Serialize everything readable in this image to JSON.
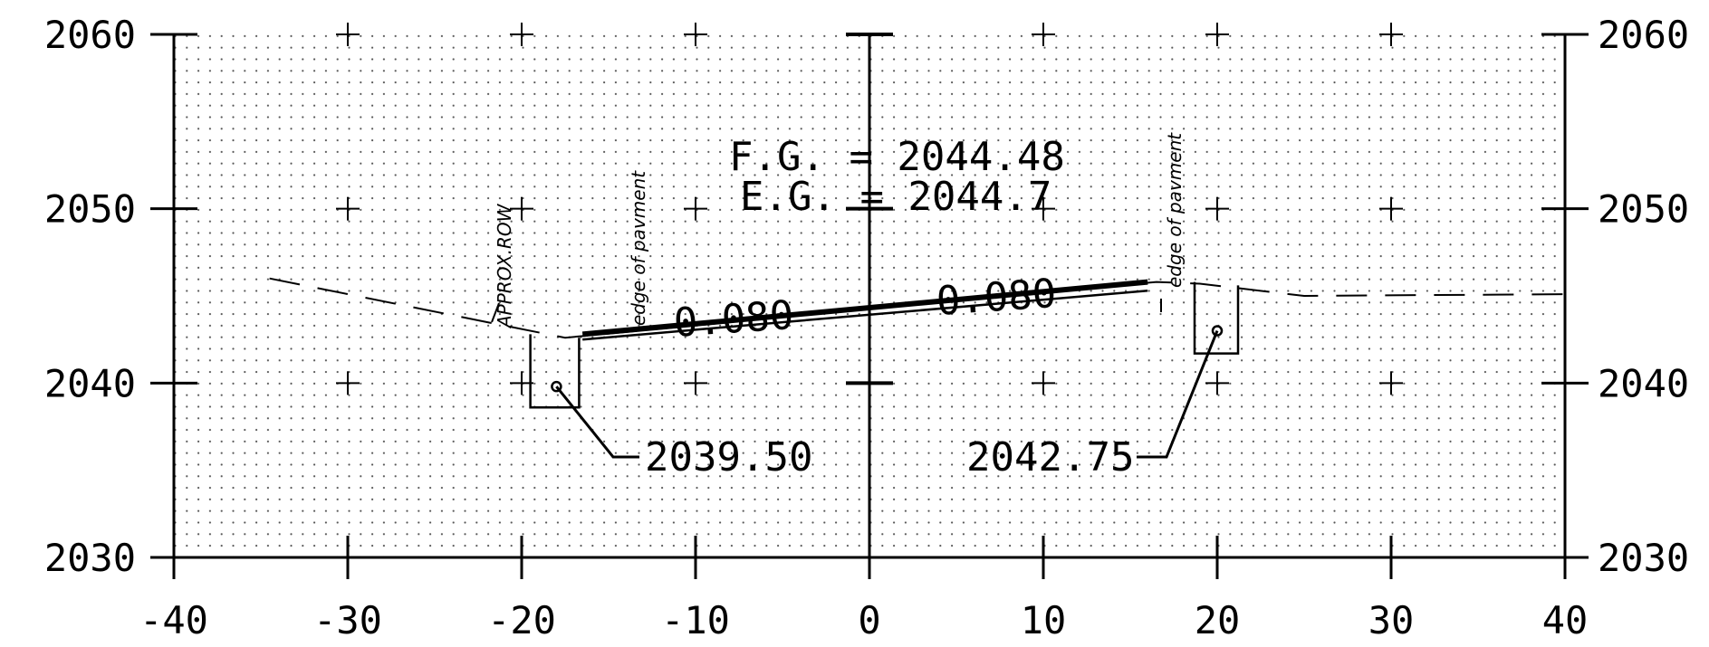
{
  "chart_data": {
    "type": "cross-section",
    "xlim": [
      -40,
      40
    ],
    "ylim": [
      2030,
      2060
    ],
    "x_ticks": [
      -40,
      -30,
      -20,
      -10,
      0,
      10,
      20,
      30,
      40
    ],
    "y_ticks": [
      2030,
      2040,
      2050,
      2060
    ],
    "x_tick_labels": [
      "-40",
      "-30",
      "-20",
      "-10",
      "0",
      "10",
      "20",
      "30",
      "40"
    ],
    "y_tick_labels": [
      "2030",
      "2040",
      "2050",
      "2060"
    ],
    "grid": "dotted",
    "annotations": {
      "fg": "F.G. = 2044.48",
      "eg": "E.G. = 2044.7",
      "slope_left": "0.080",
      "slope_right": "0.080",
      "elev_left": "2039.50",
      "elev_right": "2042.75",
      "row_label": "APPROX.ROW",
      "pav_left": "edge of pavment",
      "pav_right": "edge of pavment"
    },
    "existing_ground": [
      [
        -34.5,
        2046.0
      ],
      [
        -21,
        2043.3
      ],
      [
        -17.5,
        2042.6
      ],
      [
        16.5,
        2045.8
      ],
      [
        19,
        2045.7
      ],
      [
        25,
        2045.0
      ],
      [
        40,
        2045.1
      ]
    ],
    "finished_grade_top": [
      [
        -16.5,
        2042.8
      ],
      [
        16,
        2045.8
      ]
    ],
    "finished_grade_bottom": [
      [
        -16.5,
        2042.5
      ],
      [
        16,
        2045.3
      ]
    ],
    "left_ditch": [
      [
        -19.5,
        2042.8
      ],
      [
        -19.5,
        2038.6
      ],
      [
        -16.7,
        2038.6
      ],
      [
        -16.7,
        2042.6
      ]
    ],
    "right_ditch": [
      [
        18.7,
        2045.8
      ],
      [
        18.7,
        2041.7
      ],
      [
        21.2,
        2041.7
      ],
      [
        21.2,
        2045.6
      ]
    ],
    "left_point": [
      -18,
      2039.8
    ],
    "right_point": [
      20,
      2043.0
    ]
  }
}
